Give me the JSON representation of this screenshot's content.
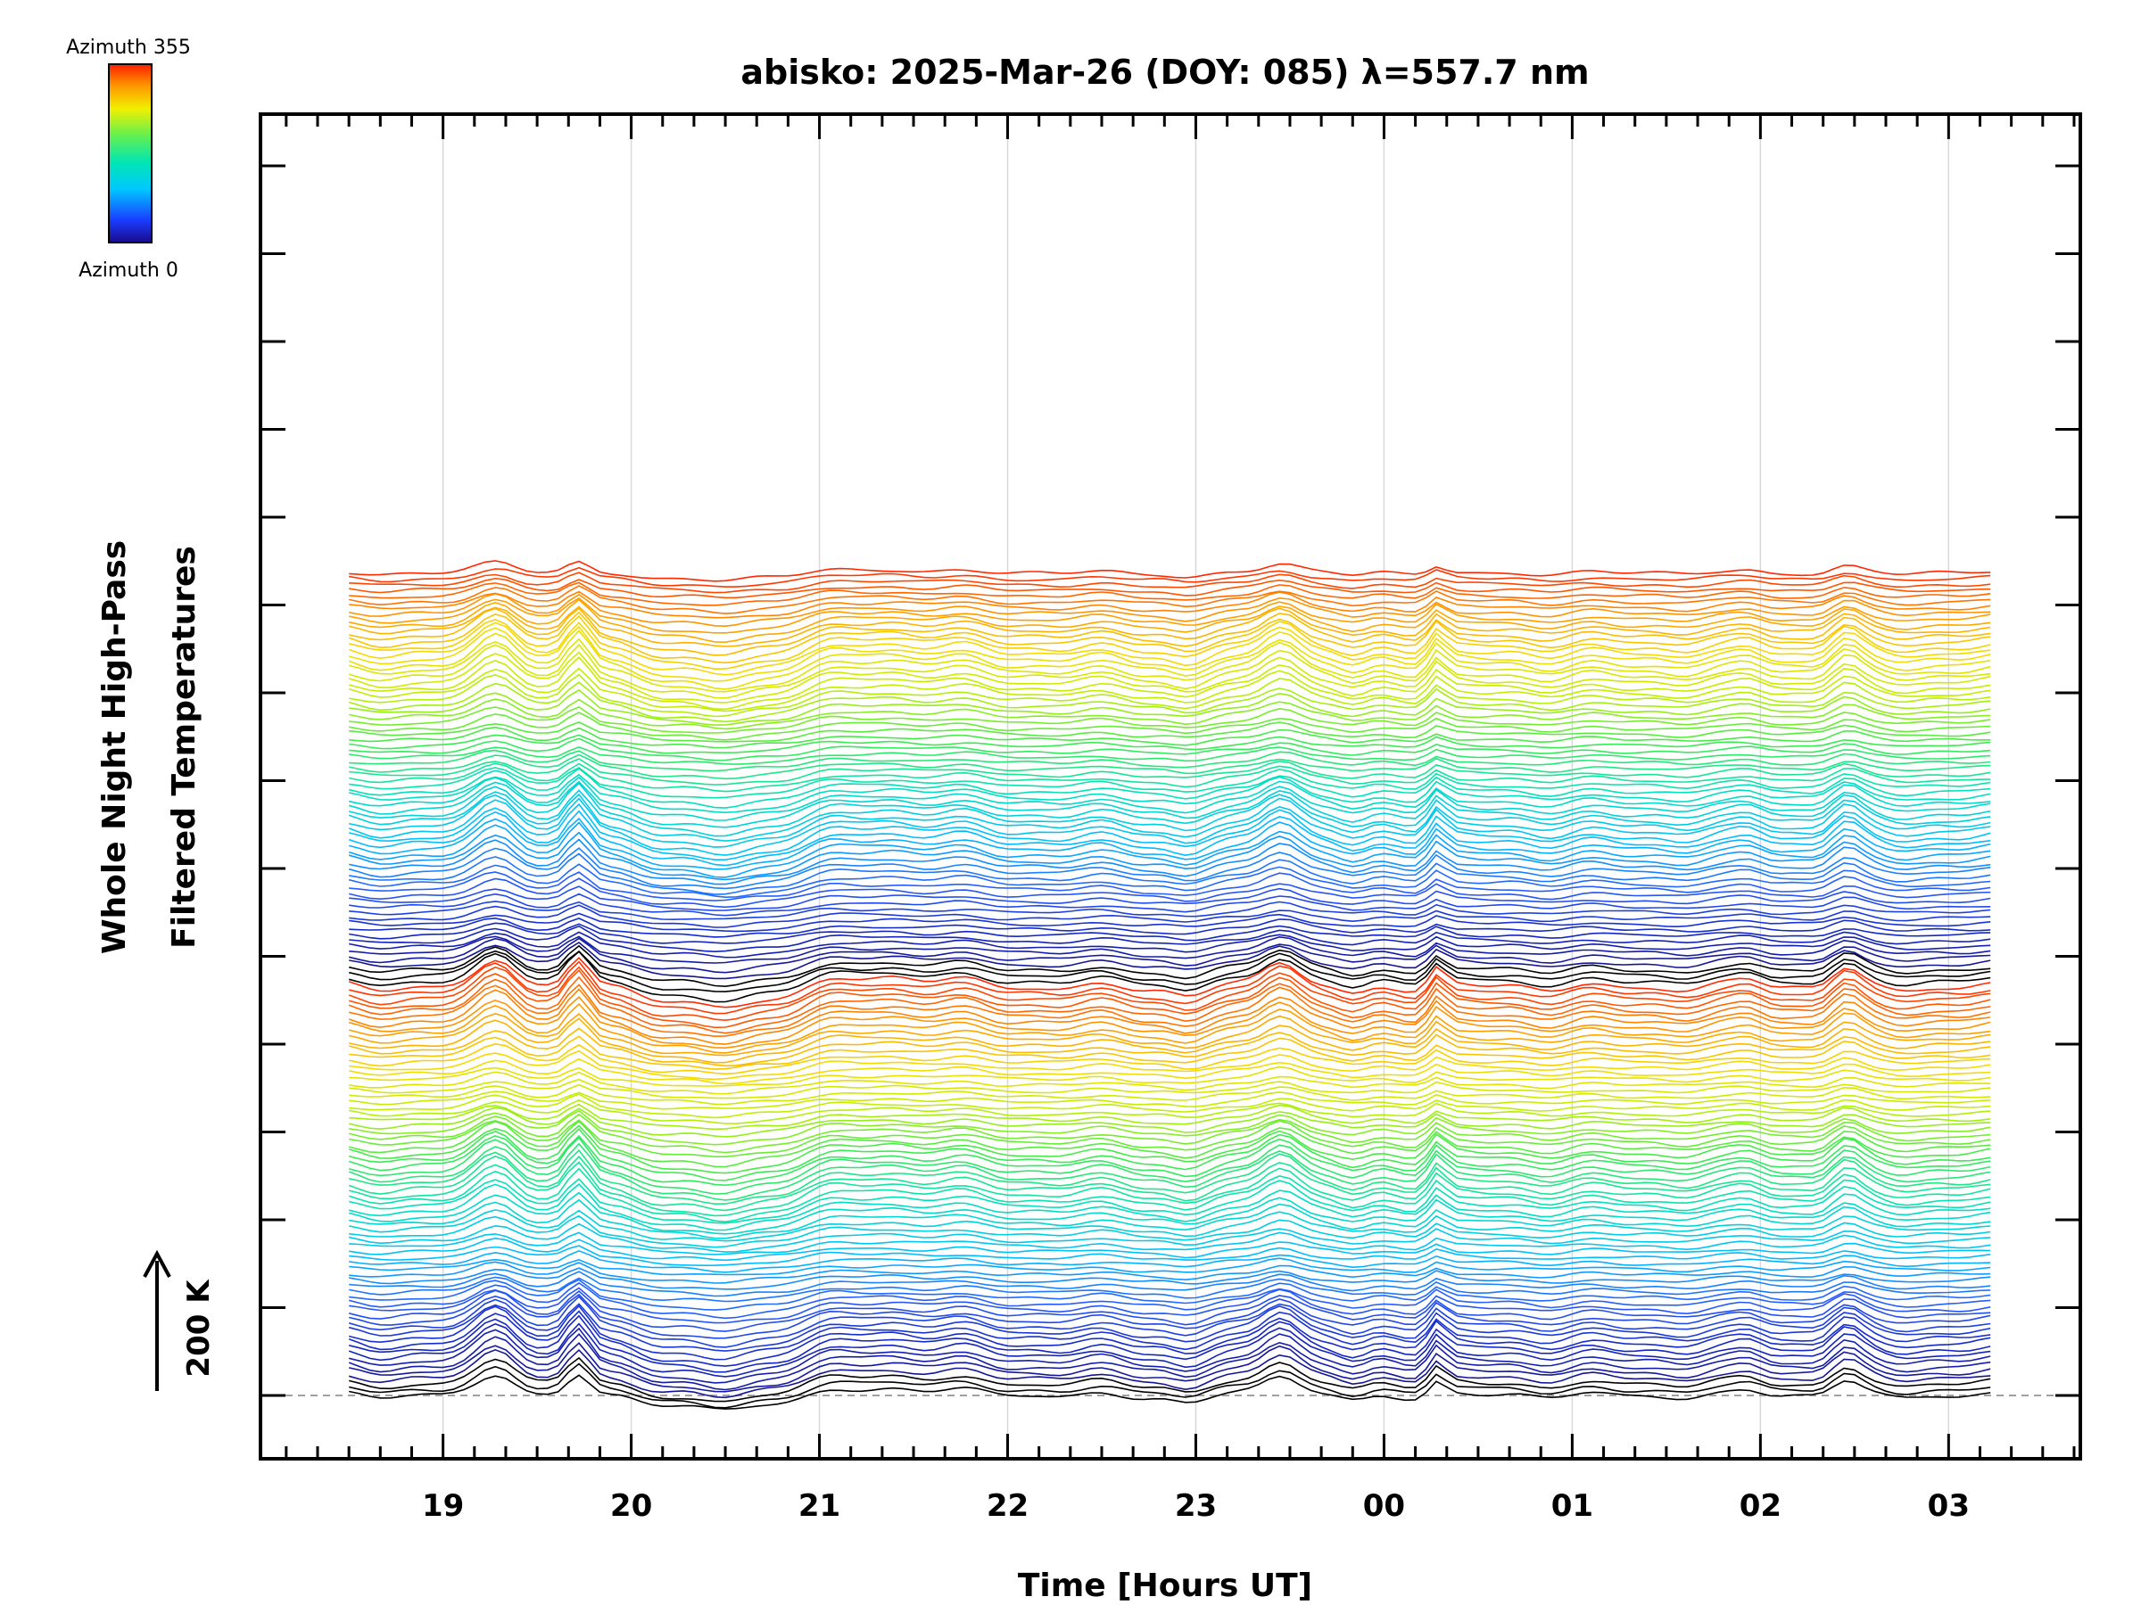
{
  "chart_data": {
    "type": "line",
    "title": "abisko: 2025-Mar-26 (DOY: 085) λ=557.7 nm",
    "xlabel": "Time [Hours UT]",
    "ylabel_line1": "Whole Night High-Pass",
    "ylabel_line2": "Filtered Temperatures",
    "x_ticks": [
      "19",
      "20",
      "21",
      "22",
      "23",
      "00",
      "01",
      "02",
      "03"
    ],
    "x_tick_hours": [
      19,
      20,
      21,
      22,
      23,
      24,
      25,
      26,
      27
    ],
    "xlim": [
      18.03,
      27.7
    ],
    "data_time_range": [
      18.5,
      27.23
    ],
    "colorbar": {
      "top_label": "Azimuth 355",
      "bottom_label": "Azimuth 0",
      "min": 0,
      "max": 355
    },
    "scale_bar_label": "200 K",
    "num_traces": 144,
    "azimuth_step": 5,
    "azimuth_cycle": 72,
    "grid": "vertical",
    "legend": "top-left colorbar"
  }
}
